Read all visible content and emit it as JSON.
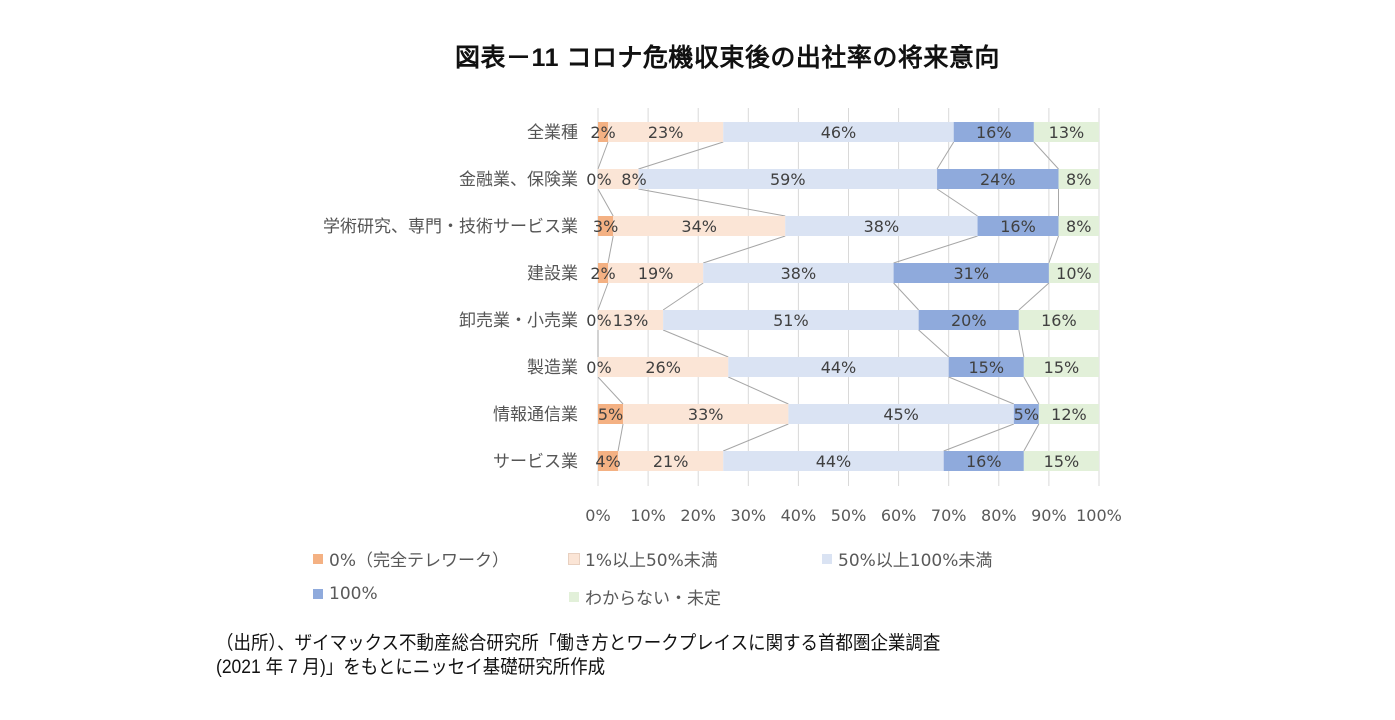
{
  "chart_data": {
    "type": "bar",
    "orientation": "horizontal",
    "stacked": "percent",
    "title": "図表－11  コロナ危機収束後の出社率の将来意向",
    "categories": [
      "全業種",
      "金融業、保険業",
      "学術研究、専門・技術サービス業",
      "建設業",
      "卸売業・小売業",
      "製造業",
      "情報通信業",
      "サービス業"
    ],
    "series": [
      {
        "name": "0%（完全テレワーク）",
        "color": "#F4B183",
        "values": [
          2,
          0,
          3,
          2,
          0,
          0,
          5,
          4
        ],
        "labels": [
          "2%",
          "0%",
          "3%",
          "2%",
          "0%",
          "0%",
          "5%",
          "4%"
        ]
      },
      {
        "name": "1%以上50%未満",
        "color": "#FBE5D6",
        "values": [
          23,
          8,
          34,
          19,
          13,
          26,
          33,
          21
        ],
        "labels": [
          "23%",
          "8%",
          "34%",
          "19%",
          "13%",
          "26%",
          "33%",
          "21%"
        ]
      },
      {
        "name": "50%以上100%未満",
        "color": "#DAE3F3",
        "values": [
          46,
          59,
          38,
          38,
          51,
          44,
          45,
          44
        ],
        "labels": [
          "46%",
          "59%",
          "38%",
          "38%",
          "51%",
          "44%",
          "45%",
          "44%"
        ]
      },
      {
        "name": "100%",
        "color": "#8FAADC",
        "values": [
          16,
          24,
          16,
          31,
          20,
          15,
          5,
          16
        ],
        "labels": [
          "16%",
          "24%",
          "16%",
          "31%",
          "20%",
          "15%",
          "5%",
          "16%"
        ]
      },
      {
        "name": "わからない・未定",
        "color": "#E2F0D9",
        "values": [
          13,
          8,
          8,
          10,
          16,
          15,
          12,
          15
        ],
        "labels": [
          "13%",
          "8%",
          "8%",
          "10%",
          "16%",
          "15%",
          "12%",
          "15%"
        ]
      }
    ],
    "xlim": [
      0,
      100
    ],
    "x_ticks": [
      "0%",
      "10%",
      "20%",
      "30%",
      "40%",
      "50%",
      "60%",
      "70%",
      "80%",
      "90%",
      "100%"
    ],
    "grid": true,
    "series_lines": true,
    "legend_position": "bottom"
  },
  "source_note": {
    "line1": "（出所）、ザイマックス不動産総合研究所「働き方とワークプレイスに関する首都圏企業調査",
    "line2": "(2021  年 7 月)」をもとにニッセイ基礎研究所作成"
  }
}
